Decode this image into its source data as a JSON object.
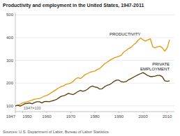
{
  "chart_data": {
    "type": "line",
    "title": "Productivity and employment in the United States, 1947-2011",
    "annotations": [
      "1947=100",
      "Sources: U.S. Department of Labor, Bureau of Labor Statistics"
    ],
    "x": [
      1947,
      1948,
      1949,
      1950,
      1951,
      1952,
      1953,
      1954,
      1955,
      1956,
      1957,
      1958,
      1959,
      1960,
      1961,
      1962,
      1963,
      1964,
      1965,
      1966,
      1967,
      1968,
      1969,
      1970,
      1971,
      1972,
      1973,
      1974,
      1975,
      1976,
      1977,
      1978,
      1979,
      1980,
      1981,
      1982,
      1983,
      1984,
      1985,
      1986,
      1987,
      1988,
      1989,
      1990,
      1991,
      1992,
      1993,
      1994,
      1995,
      1996,
      1997,
      1998,
      1999,
      2000,
      2001,
      2002,
      2003,
      2004,
      2005,
      2006,
      2007,
      2008,
      2009,
      2010,
      2011
    ],
    "series": [
      {
        "name": "PRODUCTIVITY",
        "color": "#E8960A",
        "values": [
          100,
          102,
          107,
          113,
          116,
          118,
          122,
          125,
          130,
          131,
          133,
          137,
          143,
          146,
          151,
          159,
          165,
          172,
          179,
          185,
          188,
          195,
          197,
          200,
          208,
          219,
          224,
          220,
          228,
          238,
          242,
          248,
          251,
          253,
          260,
          264,
          274,
          285,
          291,
          299,
          305,
          311,
          314,
          318,
          323,
          337,
          344,
          352,
          357,
          368,
          376,
          389,
          398,
          390,
          385,
          390,
          395,
          360,
          355,
          360,
          362,
          355,
          340,
          355,
          390
        ]
      },
      {
        "name": "PRIVATE\nEMPLOYMENT",
        "color": "#5C3A0A",
        "values": [
          100,
          103,
          99,
          104,
          110,
          111,
          113,
          109,
          115,
          118,
          118,
          113,
          119,
          120,
          118,
          121,
          124,
          128,
          135,
          142,
          144,
          149,
          155,
          152,
          150,
          156,
          163,
          168,
          164,
          167,
          174,
          183,
          187,
          183,
          181,
          174,
          175,
          184,
          190,
          193,
          200,
          208,
          213,
          213,
          206,
          205,
          207,
          215,
          220,
          226,
          232,
          237,
          242,
          246,
          240,
          233,
          229,
          229,
          231,
          234,
          234,
          228,
          210,
          208,
          210
        ]
      }
    ],
    "xlim": [
      1947,
      2013
    ],
    "ylim": [
      75,
      510
    ],
    "xticks": [
      1947,
      1950,
      1960,
      1970,
      1980,
      1990,
      2000,
      2010
    ],
    "yticks": [
      100,
      200,
      300,
      400,
      500
    ],
    "grid": true
  }
}
